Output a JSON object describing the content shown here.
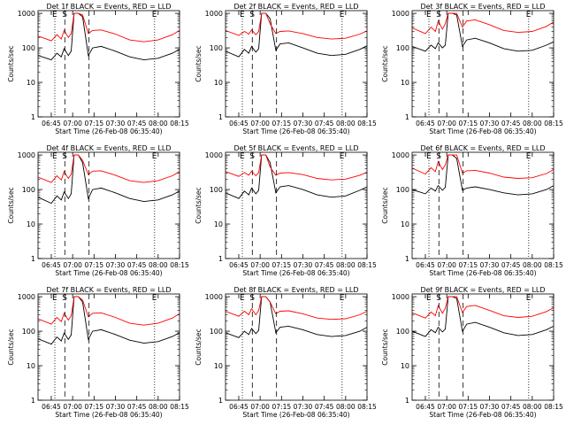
{
  "colors": {
    "events": "#000000",
    "lld": "#ff0000",
    "axis": "#000000",
    "background": "#ffffff"
  },
  "legend_text": "BLACK = Events, RED = LLD",
  "xlabel": "Start Time (26-Feb-08 06:35:40)",
  "ylabel": "Counts/sec",
  "x_tick_labels": [
    "06:45",
    "07:00",
    "07:15",
    "07:30",
    "07:45",
    "08:00",
    "08:15"
  ],
  "x_tick_minutes": [
    405,
    420,
    435,
    450,
    465,
    480,
    495
  ],
  "x_range_minutes": [
    395.7,
    495
  ],
  "y_tick_labels": [
    "1",
    "10",
    "100",
    "1000"
  ],
  "y_tick_values": [
    1,
    10,
    100,
    1000
  ],
  "y_range": [
    1,
    1200
  ],
  "y_scale": "log",
  "markers": [
    {
      "label": "E",
      "minute": 407.5,
      "style": "dotted"
    },
    {
      "label": "S",
      "minute": 414.5,
      "style": "dashed"
    },
    {
      "label": "",
      "minute": 431.5,
      "style": "dashed"
    },
    {
      "label": "E",
      "minute": 477.5,
      "style": "dotted"
    }
  ],
  "chart_data": [
    {
      "type": "line",
      "title": "Det 1f BLACK = Events, RED = LLD",
      "detector": "Det 1f",
      "series": [
        {
          "color": "#000000",
          "x": [
            395.7,
            405,
            409,
            412,
            414,
            417,
            419,
            421,
            424,
            427,
            431,
            434,
            440,
            450,
            460,
            470,
            480,
            490,
            495
          ],
          "y": [
            60,
            45,
            70,
            55,
            95,
            60,
            80,
            1000,
            1000,
            800,
            60,
            100,
            110,
            80,
            55,
            45,
            50,
            70,
            90
          ]
        },
        {
          "color": "#ff0000",
          "x": [
            395.7,
            405,
            409,
            412,
            414,
            417,
            419,
            421,
            424,
            427,
            431,
            434,
            440,
            450,
            460,
            470,
            480,
            490,
            495
          ],
          "y": [
            220,
            160,
            240,
            180,
            320,
            200,
            260,
            1000,
            1000,
            900,
            260,
            320,
            330,
            250,
            170,
            150,
            170,
            240,
            320
          ]
        }
      ]
    },
    {
      "type": "line",
      "title": "Det 2f BLACK = Events, RED = LLD",
      "detector": "Det 2f",
      "series": [
        {
          "color": "#000000",
          "x": [
            395.7,
            405,
            409,
            412,
            414,
            417,
            419,
            421,
            424,
            427,
            431,
            434,
            440,
            450,
            460,
            470,
            480,
            490,
            495
          ],
          "y": [
            80,
            55,
            90,
            70,
            110,
            75,
            95,
            1000,
            1000,
            700,
            85,
            130,
            140,
            100,
            70,
            60,
            65,
            90,
            115
          ]
        },
        {
          "color": "#ff0000",
          "x": [
            395.7,
            405,
            409,
            412,
            414,
            417,
            419,
            421,
            424,
            427,
            431,
            434,
            440,
            450,
            460,
            470,
            480,
            490,
            495
          ],
          "y": [
            320,
            230,
            300,
            250,
            330,
            240,
            300,
            1000,
            1000,
            500,
            260,
            300,
            310,
            260,
            200,
            180,
            190,
            250,
            310
          ]
        }
      ]
    },
    {
      "type": "line",
      "title": "Det 3f BLACK = Events, RED = LLD",
      "detector": "Det 3f",
      "series": [
        {
          "color": "#000000",
          "x": [
            395.7,
            405,
            409,
            412,
            414,
            417,
            419,
            421,
            424,
            427,
            431,
            434,
            440,
            450,
            460,
            470,
            480,
            490,
            495
          ],
          "y": [
            110,
            80,
            120,
            95,
            140,
            100,
            120,
            1000,
            1000,
            900,
            110,
            170,
            190,
            140,
            95,
            80,
            85,
            120,
            150
          ]
        },
        {
          "color": "#ff0000",
          "x": [
            395.7,
            405,
            409,
            412,
            414,
            417,
            419,
            421,
            424,
            427,
            431,
            434,
            440,
            450,
            460,
            470,
            480,
            490,
            495
          ],
          "y": [
            380,
            260,
            400,
            300,
            600,
            350,
            500,
            1000,
            1000,
            1000,
            400,
            600,
            650,
            470,
            320,
            280,
            300,
            420,
            560
          ]
        }
      ]
    },
    {
      "type": "line",
      "title": "Det 4f BLACK = Events, RED = LLD",
      "detector": "Det 4f",
      "series": [
        {
          "color": "#000000",
          "x": [
            395.7,
            405,
            409,
            412,
            414,
            417,
            419,
            421,
            424,
            427,
            431,
            434,
            440,
            450,
            460,
            470,
            480,
            490,
            495
          ],
          "y": [
            60,
            40,
            65,
            50,
            85,
            55,
            75,
            1000,
            1000,
            600,
            55,
            100,
            110,
            80,
            55,
            45,
            50,
            70,
            90
          ]
        },
        {
          "color": "#ff0000",
          "x": [
            395.7,
            405,
            409,
            412,
            414,
            417,
            419,
            421,
            424,
            427,
            431,
            434,
            440,
            450,
            460,
            470,
            480,
            490,
            495
          ],
          "y": [
            230,
            160,
            250,
            190,
            330,
            210,
            280,
            1000,
            1000,
            700,
            270,
            340,
            350,
            260,
            180,
            160,
            180,
            250,
            330
          ]
        }
      ]
    },
    {
      "type": "line",
      "title": "Det 5f BLACK = Events, RED = LLD",
      "detector": "Det 5f",
      "series": [
        {
          "color": "#000000",
          "x": [
            395.7,
            405,
            409,
            412,
            414,
            417,
            419,
            421,
            424,
            427,
            431,
            434,
            440,
            450,
            460,
            470,
            480,
            490,
            495
          ],
          "y": [
            80,
            55,
            90,
            70,
            110,
            75,
            95,
            1000,
            1000,
            600,
            80,
            120,
            130,
            100,
            70,
            60,
            65,
            95,
            120
          ]
        },
        {
          "color": "#ff0000",
          "x": [
            395.7,
            405,
            409,
            412,
            414,
            417,
            419,
            421,
            424,
            427,
            431,
            434,
            440,
            450,
            460,
            470,
            480,
            490,
            495
          ],
          "y": [
            330,
            240,
            310,
            260,
            340,
            250,
            310,
            1000,
            1000,
            450,
            260,
            300,
            310,
            270,
            210,
            190,
            200,
            260,
            320
          ]
        }
      ]
    },
    {
      "type": "line",
      "title": "Det 6f BLACK = Events, RED = LLD",
      "detector": "Det 6f",
      "series": [
        {
          "color": "#000000",
          "x": [
            395.7,
            405,
            409,
            412,
            414,
            417,
            419,
            421,
            424,
            427,
            431,
            434,
            440,
            450,
            460,
            470,
            480,
            490,
            495
          ],
          "y": [
            100,
            75,
            110,
            90,
            130,
            95,
            115,
            1000,
            1000,
            800,
            95,
            110,
            120,
            100,
            80,
            70,
            75,
            100,
            130
          ]
        },
        {
          "color": "#ff0000",
          "x": [
            395.7,
            405,
            409,
            412,
            414,
            417,
            419,
            421,
            424,
            427,
            431,
            434,
            440,
            450,
            460,
            470,
            480,
            490,
            495
          ],
          "y": [
            420,
            280,
            430,
            330,
            650,
            380,
            520,
            1000,
            1000,
            1000,
            300,
            350,
            360,
            300,
            230,
            210,
            220,
            290,
            380
          ]
        }
      ]
    },
    {
      "type": "line",
      "title": "Det 7f BLACK = Events, RED = LLD",
      "detector": "Det 7f",
      "series": [
        {
          "color": "#000000",
          "x": [
            395.7,
            405,
            409,
            412,
            414,
            417,
            419,
            421,
            424,
            427,
            431,
            434,
            440,
            450,
            460,
            470,
            480,
            490,
            495
          ],
          "y": [
            60,
            42,
            68,
            52,
            88,
            58,
            78,
            1000,
            1000,
            700,
            58,
            100,
            110,
            80,
            55,
            45,
            50,
            70,
            90
          ]
        },
        {
          "color": "#ff0000",
          "x": [
            395.7,
            405,
            409,
            412,
            414,
            417,
            419,
            421,
            424,
            427,
            431,
            434,
            440,
            450,
            460,
            470,
            480,
            490,
            495
          ],
          "y": [
            230,
            160,
            250,
            190,
            330,
            210,
            280,
            1000,
            1000,
            800,
            260,
            330,
            340,
            250,
            170,
            150,
            170,
            240,
            320
          ]
        }
      ]
    },
    {
      "type": "line",
      "title": "Det 8f BLACK = Events, RED = LLD",
      "detector": "Det 8f",
      "series": [
        {
          "color": "#000000",
          "x": [
            395.7,
            405,
            409,
            412,
            414,
            417,
            419,
            421,
            424,
            427,
            431,
            434,
            440,
            450,
            460,
            470,
            480,
            490,
            495
          ],
          "y": [
            90,
            65,
            100,
            80,
            120,
            85,
            105,
            1000,
            1000,
            700,
            90,
            130,
            140,
            110,
            80,
            70,
            75,
            100,
            130
          ]
        },
        {
          "color": "#ff0000",
          "x": [
            395.7,
            405,
            409,
            412,
            414,
            417,
            419,
            421,
            424,
            427,
            431,
            434,
            440,
            450,
            460,
            470,
            480,
            490,
            495
          ],
          "y": [
            380,
            270,
            380,
            300,
            450,
            300,
            400,
            1000,
            1000,
            700,
            320,
            380,
            390,
            320,
            240,
            220,
            230,
            300,
            380
          ]
        }
      ]
    },
    {
      "type": "line",
      "title": "Det 9f BLACK = Events, RED = LLD",
      "detector": "Det 9f",
      "series": [
        {
          "color": "#000000",
          "x": [
            395.7,
            405,
            409,
            412,
            414,
            417,
            419,
            421,
            424,
            427,
            431,
            434,
            440,
            450,
            460,
            470,
            480,
            490,
            495
          ],
          "y": [
            100,
            70,
            110,
            90,
            130,
            95,
            115,
            1000,
            1000,
            900,
            100,
            160,
            180,
            130,
            90,
            75,
            80,
            110,
            140
          ]
        },
        {
          "color": "#ff0000",
          "x": [
            395.7,
            405,
            409,
            412,
            414,
            417,
            419,
            421,
            424,
            427,
            431,
            434,
            440,
            450,
            460,
            470,
            480,
            490,
            495
          ],
          "y": [
            340,
            240,
            360,
            280,
            560,
            330,
            460,
            1000,
            1000,
            1000,
            350,
            520,
            560,
            400,
            280,
            250,
            270,
            370,
            480
          ]
        }
      ]
    }
  ]
}
